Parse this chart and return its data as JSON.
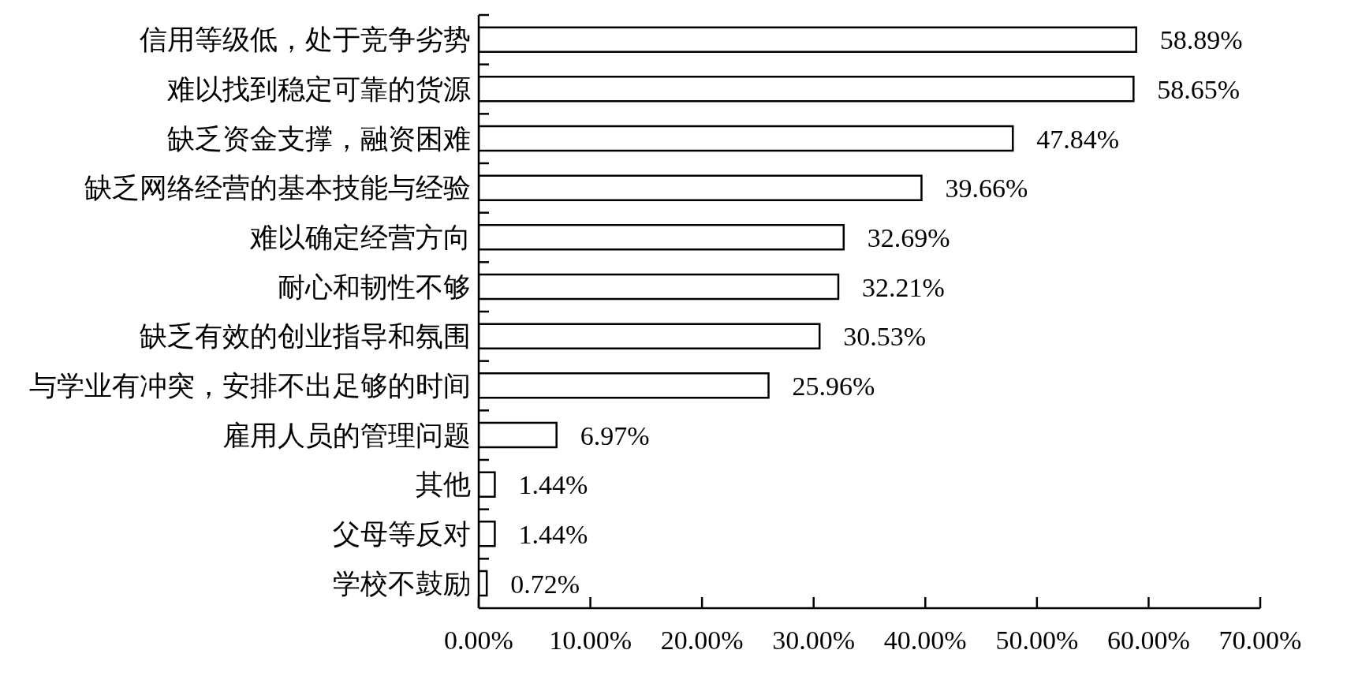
{
  "chart_data": {
    "type": "bar",
    "orientation": "horizontal",
    "categories": [
      "信用等级低，处于竞争劣势",
      "难以找到稳定可靠的货源",
      "缺乏资金支撑，融资困难",
      "缺乏网络经营的基本技能与经验",
      "难以确定经营方向",
      "耐心和韧性不够",
      "缺乏有效的创业指导和氛围",
      "与学业有冲突，安排不出足够的时间",
      "雇用人员的管理问题",
      "其他",
      "父母等反对",
      "学校不鼓励"
    ],
    "values": [
      58.89,
      58.65,
      47.84,
      39.66,
      32.69,
      32.21,
      30.53,
      25.96,
      6.97,
      1.44,
      1.44,
      0.72
    ],
    "value_labels": [
      "58.89%",
      "58.65%",
      "47.84%",
      "39.66%",
      "32.69%",
      "32.21%",
      "30.53%",
      "25.96%",
      "6.97%",
      "1.44%",
      "1.44%",
      "0.72%"
    ],
    "color": "#ffffff",
    "xlim": [
      0,
      70
    ],
    "xticks": [
      {
        "value": 0,
        "label": "0.00%"
      },
      {
        "value": 10,
        "label": "10.00%"
      },
      {
        "value": 20,
        "label": "20.00%"
      },
      {
        "value": 30,
        "label": "30.00%"
      },
      {
        "value": 40,
        "label": "40.00%"
      },
      {
        "value": 50,
        "label": "50.00%"
      },
      {
        "value": 60,
        "label": "60.00%"
      },
      {
        "value": 70,
        "label": "70.00%"
      }
    ]
  }
}
